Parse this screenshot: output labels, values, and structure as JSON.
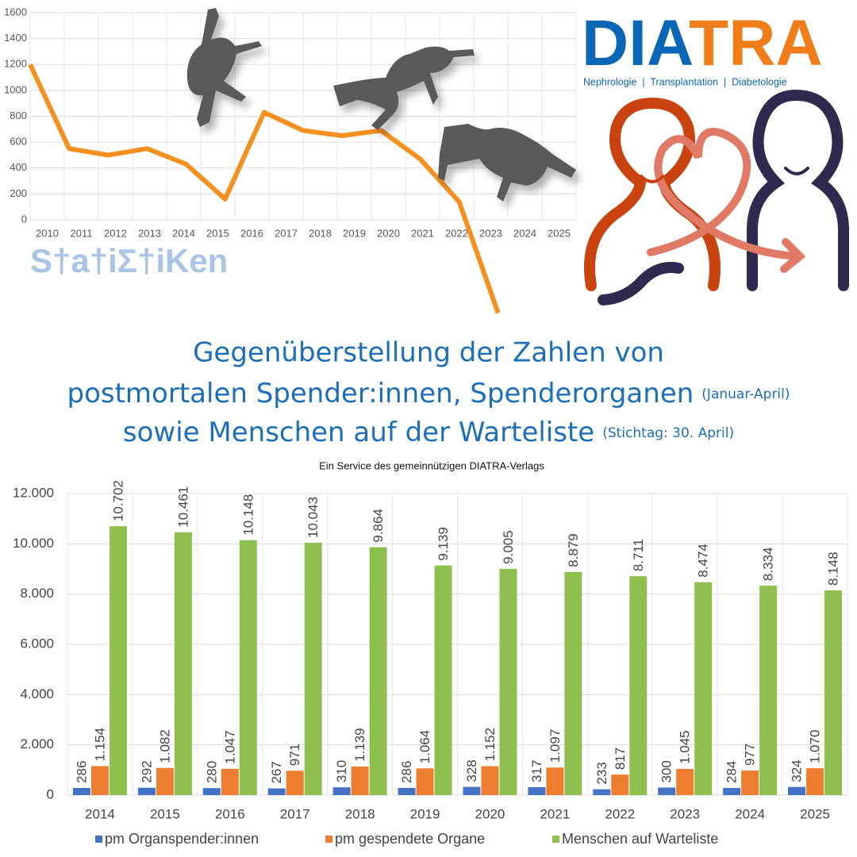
{
  "logo": {
    "parts": [
      "DIA",
      "TRA"
    ],
    "tagline": "Nephrologie  |  Transplantation  |  Diabetologie"
  },
  "stats_word": "S†a†iΣ†iKen",
  "headline": {
    "lines": [
      "Gegenüberstellung der Zahlen von",
      "postmortalen Spender:innen, Spenderorganen",
      "sowie Menschen auf der Warteliste"
    ],
    "notes": [
      "(Januar-April)",
      "(Stichtag: 30. April)"
    ]
  },
  "subtitle": "Ein Service des gemeinnützigen DIATRA-Verlags",
  "chart_data": [
    {
      "type": "line",
      "categories": [
        "2010",
        "2011",
        "2012",
        "2013",
        "2014",
        "2015",
        "2016",
        "2017",
        "2018",
        "2019",
        "2020",
        "2021",
        "2022",
        "2023",
        "2024",
        "2025"
      ],
      "values": [
        1200,
        550,
        500,
        550,
        430,
        160,
        830,
        690,
        650,
        690,
        470,
        140,
        -720,
        null,
        null,
        null
      ],
      "color": "#f39020",
      "ylim": [
        0,
        1600
      ],
      "yticks": [
        0,
        200,
        400,
        600,
        800,
        1000,
        1200,
        1400,
        1600
      ],
      "grid": true
    },
    {
      "type": "bar",
      "categories": [
        "2014",
        "2015",
        "2016",
        "2017",
        "2018",
        "2019",
        "2020",
        "2021",
        "2022",
        "2023",
        "2024",
        "2025"
      ],
      "series": [
        {
          "name": "pm Organspender:innen",
          "color": "#4472c4",
          "values": [
            286,
            292,
            280,
            267,
            310,
            286,
            328,
            317,
            233,
            300,
            284,
            324
          ]
        },
        {
          "name": "pm gespendete Organe",
          "color": "#ed7d31",
          "values": [
            1154,
            1082,
            1047,
            971,
            1139,
            1064,
            1152,
            1097,
            817,
            1045,
            977,
            1070
          ],
          "value_labels": [
            "1.154",
            "1.082",
            "1.047",
            "971",
            "1.139",
            "1.064",
            "1.152",
            "1.097",
            "817",
            "1.045",
            "977",
            "1.070"
          ]
        },
        {
          "name": "Menschen auf Warteliste",
          "color": "#8fc04f",
          "values": [
            10702,
            10461,
            10148,
            10043,
            9864,
            9139,
            9005,
            8879,
            8711,
            8474,
            8334,
            8148
          ],
          "value_labels": [
            "10.702",
            "10.461",
            "10.148",
            "10.043",
            "9.864",
            "9.139",
            "9.005",
            "8.879",
            "8.711",
            "8.474",
            "8.334",
            "8.148"
          ]
        }
      ],
      "ylim": [
        0,
        12000
      ],
      "yticks": [
        {
          "value": 0,
          "label": "0"
        },
        {
          "value": 2000,
          "label": "2.000"
        },
        {
          "value": 4000,
          "label": "4.000"
        },
        {
          "value": 6000,
          "label": "6.000"
        },
        {
          "value": 8000,
          "label": "8.000"
        },
        {
          "value": 10000,
          "label": "10.000"
        },
        {
          "value": 12000,
          "label": "12.000"
        }
      ],
      "grid": true,
      "legend": "bottom"
    }
  ]
}
